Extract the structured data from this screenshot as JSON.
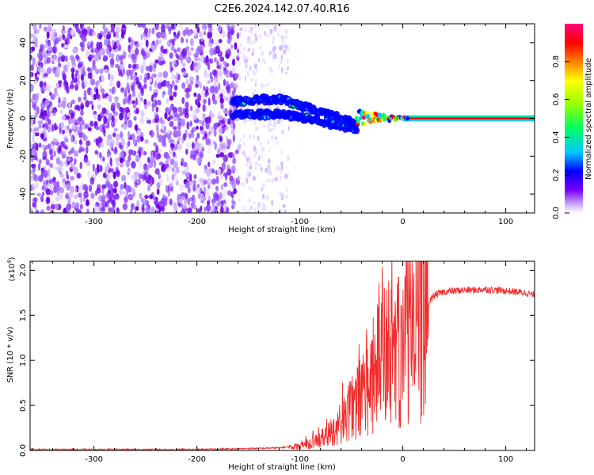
{
  "title": "C2E6.2024.142.07.40.R16",
  "chart_data": [
    {
      "type": "heatmap",
      "xlabel": "Height of straight line (km)",
      "ylabel": "Frequency (Hz)",
      "xlim": [
        -362,
        128
      ],
      "ylim": [
        -50,
        50
      ],
      "x_ticks": [
        -300,
        -200,
        -100,
        0,
        100
      ],
      "y_ticks": [
        -40,
        -20,
        0,
        20,
        40
      ],
      "colorbar": {
        "label": "Normalized spectral amplitude",
        "range": [
          0,
          1
        ],
        "ticks": [
          0.0,
          0.2,
          0.4,
          0.6,
          0.8
        ],
        "colormap": [
          "#ffffff",
          "#c8a0ff",
          "#7a00ff",
          "#0000ff",
          "#00c8ff",
          "#00ff60",
          "#a0ff00",
          "#ffff00",
          "#ff8000",
          "#ff0000",
          "#ff0080"
        ]
      },
      "features": {
        "noise_region_x": [
          -362,
          -160
        ],
        "faint_noise_x": [
          -160,
          -110
        ],
        "dual_tracks": [
          {
            "x": [
              -165,
              -140,
              -120,
              -105,
              -90,
              -75,
              -60,
              -45
            ],
            "y": [
              9,
              10,
              10,
              8,
              5,
              3,
              0,
              -3
            ]
          },
          {
            "x": [
              -165,
              -140,
              -120,
              -105,
              -90,
              -75,
              -60,
              -45
            ],
            "y": [
              2,
              2,
              2,
              1,
              0,
              -2,
              -5,
              -5
            ]
          }
        ],
        "converging_x": [
          -45,
          5
        ],
        "carrier_line": {
          "x": [
            0,
            128
          ],
          "y": 0
        }
      }
    },
    {
      "type": "line",
      "xlabel": "Height of straight line (km)",
      "ylabel": "SNR (10 * v/v)",
      "y_multiplier": "(x10",
      "y_multiplier_exp": "4",
      "xlim": [
        -362,
        128
      ],
      "ylim": [
        0,
        2.1
      ],
      "x_ticks": [
        -300,
        -200,
        -100,
        0,
        100
      ],
      "y_ticks": [
        "0.0",
        "0.5",
        "1.0",
        "1.5",
        "2.0"
      ],
      "color": "#ef2e2e",
      "series": [
        {
          "x": [
            -362,
            -300,
            -200,
            -150,
            -120,
            -100,
            -90,
            -80,
            -70,
            -60,
            -50,
            -40,
            -30,
            -20,
            -15,
            -10,
            -5,
            0,
            10,
            20,
            30,
            40,
            50,
            60,
            70,
            80,
            90,
            100,
            110,
            120,
            128
          ],
          "y": [
            0.01,
            0.01,
            0.01,
            0.02,
            0.03,
            0.05,
            0.08,
            0.12,
            0.2,
            0.3,
            0.45,
            0.6,
            0.8,
            1.0,
            1.1,
            1.0,
            1.05,
            1.15,
            1.3,
            1.55,
            1.72,
            1.76,
            1.77,
            1.78,
            1.78,
            1.79,
            1.78,
            1.77,
            1.76,
            1.75,
            1.72
          ]
        }
      ]
    }
  ]
}
